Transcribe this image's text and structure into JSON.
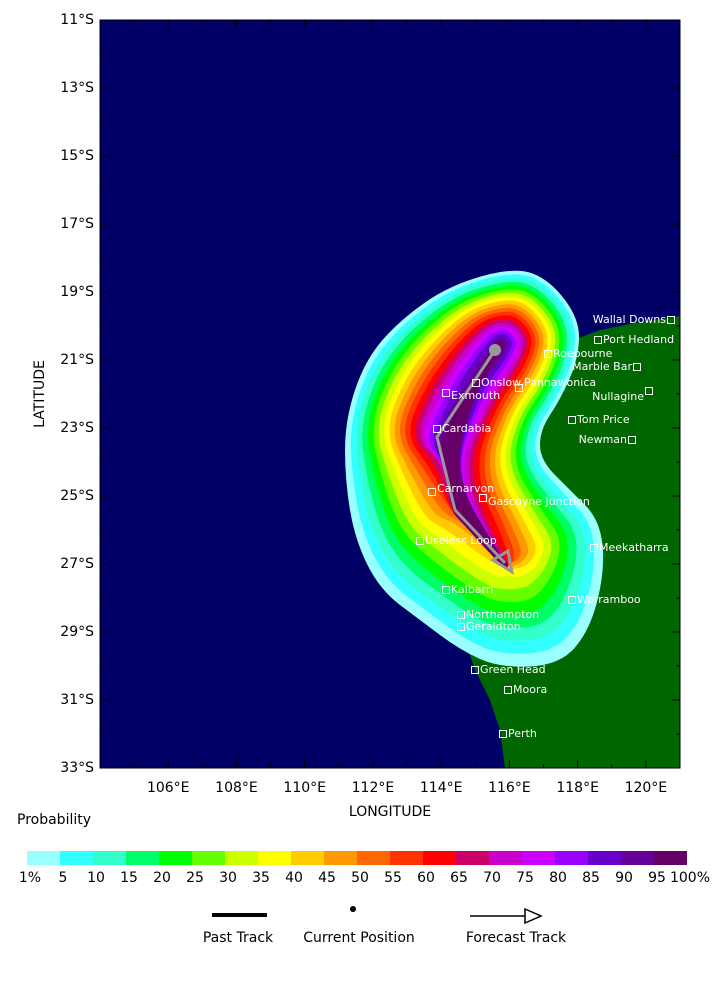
{
  "map": {
    "xlabel": "LONGITUDE",
    "ylabel": "LATITUDE",
    "xlim": [
      104,
      121
    ],
    "ylim": [
      -33,
      -11
    ],
    "xticks": [
      {
        "value": 106,
        "label": "106°E"
      },
      {
        "value": 108,
        "label": "108°E"
      },
      {
        "value": 110,
        "label": "110°E"
      },
      {
        "value": 112,
        "label": "112°E"
      },
      {
        "value": 114,
        "label": "114°E"
      },
      {
        "value": 116,
        "label": "116°E"
      },
      {
        "value": 118,
        "label": "118°E"
      },
      {
        "value": 120,
        "label": "120°E"
      }
    ],
    "yticks": [
      {
        "value": -11,
        "label": "11°S"
      },
      {
        "value": -13,
        "label": "13°S"
      },
      {
        "value": -15,
        "label": "15°S"
      },
      {
        "value": -17,
        "label": "17°S"
      },
      {
        "value": -19,
        "label": "19°S"
      },
      {
        "value": -21,
        "label": "21°S"
      },
      {
        "value": -23,
        "label": "23°S"
      },
      {
        "value": -25,
        "label": "25°S"
      },
      {
        "value": -27,
        "label": "27°S"
      },
      {
        "value": -29,
        "label": "29°S"
      },
      {
        "value": -31,
        "label": "31°S"
      },
      {
        "value": -33,
        "label": "33°S"
      }
    ],
    "ocean_color": "#000066",
    "land_color": "#006600",
    "cities": [
      "Wallal Downs",
      "Port Hedland",
      "Roebourne",
      "Marble Bar",
      "Nullagine",
      "Onslow",
      "Pannawonica",
      "Exmouth",
      "Tom Price",
      "Newman",
      "Cardabia",
      "Carnarvon",
      "Gascoyne Junction",
      "Useless Loop",
      "Meekatharra",
      "Kalbarri",
      "Warramboo",
      "Northampton",
      "Geraldton",
      "Green Head",
      "Moora",
      "Perth"
    ]
  },
  "legend": {
    "title": "Probability",
    "labels": [
      "1%",
      "5",
      "10",
      "15",
      "20",
      "25",
      "30",
      "35",
      "40",
      "45",
      "50",
      "55",
      "60",
      "65",
      "70",
      "75",
      "80",
      "85",
      "90",
      "95",
      "100%"
    ],
    "colors": [
      "#99ffff",
      "#33ffff",
      "#33ffcc",
      "#00ff66",
      "#00ff00",
      "#66ff00",
      "#ccff00",
      "#ffff00",
      "#ffcc00",
      "#ff9900",
      "#ff6600",
      "#ff3300",
      "#ff0000",
      "#cc0066",
      "#cc00cc",
      "#cc00ff",
      "#9900ff",
      "#6600cc",
      "#660099",
      "#660066"
    ],
    "track_keys": [
      "Past Track",
      "Current Position",
      "Forecast Track"
    ]
  }
}
